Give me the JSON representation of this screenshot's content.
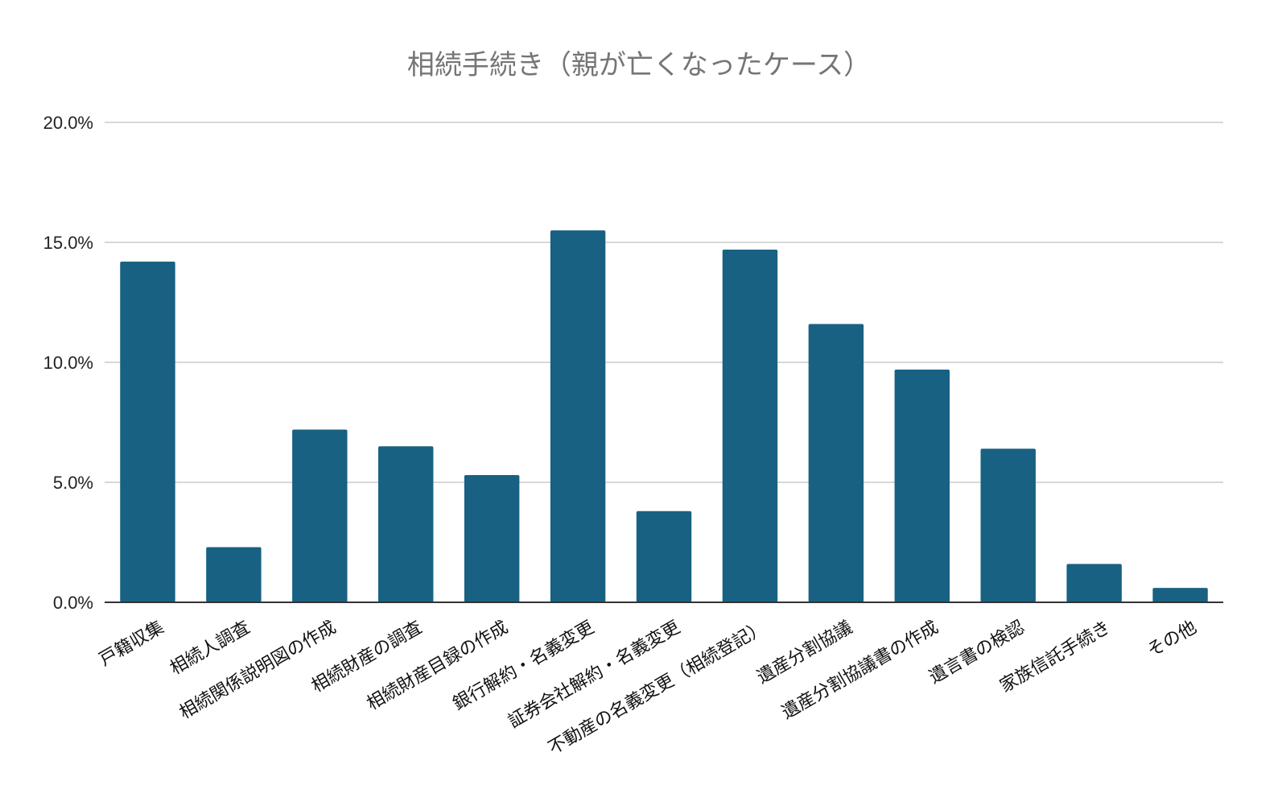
{
  "chart_data": {
    "type": "bar",
    "title": "相続手続き（親が亡くなったケース）",
    "xlabel": "",
    "ylabel": "",
    "ylim": [
      0,
      20
    ],
    "y_ticks": [
      "0.0%",
      "5.0%",
      "10.0%",
      "15.0%",
      "20.0%"
    ],
    "y_tick_values": [
      0,
      5,
      10,
      15,
      20
    ],
    "grid": true,
    "bar_color": "#186182",
    "categories": [
      "戸籍収集",
      "相続人調査",
      "相続関係説明図の作成",
      "相続財産の調査",
      "相続財産目録の作成",
      "銀行解約・名義変更",
      "証券会社解約・名義変更",
      "不動産の名義変更（相続登記）",
      "遺産分割協議",
      "遺産分割協議書の作成",
      "遺言書の検認",
      "家族信託手続き",
      "その他"
    ],
    "values": [
      14.2,
      2.3,
      7.2,
      6.5,
      5.3,
      15.5,
      3.8,
      14.7,
      11.6,
      9.7,
      6.4,
      1.6,
      0.6
    ]
  }
}
